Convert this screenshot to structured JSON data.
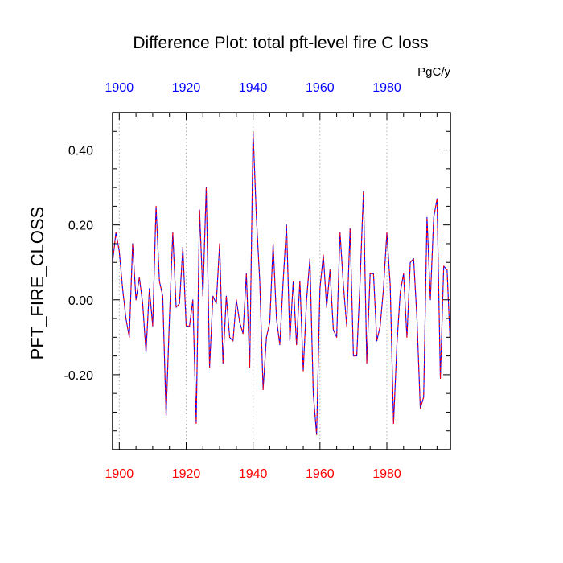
{
  "chart_data": {
    "type": "line",
    "title": "Difference Plot: total pft-level fire C loss",
    "units": "PgC/y",
    "ylabel": "PFT_FIRE_CLOSS",
    "xlim": [
      1898,
      1999
    ],
    "ylim": [
      -0.4,
      0.5
    ],
    "x_ticks": [
      1900,
      1920,
      1940,
      1960,
      1980
    ],
    "x_tick_labels": [
      "1900",
      "1920",
      "1940",
      "1960",
      "1980"
    ],
    "y_ticks": [
      -0.2,
      0.0,
      0.2,
      0.4
    ],
    "y_tick_labels": [
      "-0.20",
      "0.00",
      "0.20",
      "0.40"
    ],
    "grid": "vertical dotted at major x ticks",
    "colors": {
      "series_a": "#0000ff",
      "series_b": "#ff0000",
      "top_axis_labels": "#0000ff",
      "bottom_axis_labels": "#ff0000",
      "grid": "#b0b0b0",
      "axes": "#000000"
    },
    "series": [
      {
        "x": [
          1898,
          1899,
          1900,
          1901,
          1902,
          1903,
          1904,
          1905,
          1906,
          1907,
          1908,
          1909,
          1910,
          1911,
          1912,
          1913,
          1914,
          1915,
          1916,
          1917,
          1918,
          1919,
          1920,
          1921,
          1922,
          1923,
          1924,
          1925,
          1926,
          1927,
          1928,
          1929,
          1930,
          1931,
          1932,
          1933,
          1934,
          1935,
          1936,
          1937,
          1938,
          1939,
          1940,
          1941,
          1942,
          1943,
          1944,
          1945,
          1946,
          1947,
          1948,
          1949,
          1950,
          1951,
          1952,
          1953,
          1954,
          1955,
          1956,
          1957,
          1958,
          1959,
          1960,
          1961,
          1962,
          1963,
          1964,
          1965,
          1966,
          1967,
          1968,
          1969,
          1970,
          1971,
          1972,
          1973,
          1974,
          1975,
          1976,
          1977,
          1978,
          1979,
          1980,
          1981,
          1982,
          1983,
          1984,
          1985,
          1986,
          1987,
          1988,
          1989,
          1990,
          1991,
          1992,
          1993,
          1994,
          1995,
          1996,
          1997,
          1998,
          1999
        ],
        "y": [
          0.1,
          0.18,
          0.13,
          0.03,
          -0.05,
          -0.1,
          0.15,
          0.0,
          0.06,
          -0.01,
          -0.14,
          0.03,
          -0.07,
          0.25,
          0.05,
          0.01,
          -0.31,
          -0.05,
          0.18,
          -0.02,
          -0.01,
          0.14,
          -0.07,
          -0.07,
          0.0,
          -0.33,
          0.24,
          0.01,
          0.3,
          -0.18,
          0.01,
          -0.01,
          0.15,
          -0.17,
          0.01,
          -0.1,
          -0.11,
          0.0,
          -0.06,
          -0.09,
          0.07,
          -0.18,
          0.45,
          0.22,
          0.05,
          -0.24,
          -0.1,
          -0.06,
          0.15,
          -0.05,
          -0.12,
          0.05,
          0.2,
          -0.11,
          0.05,
          -0.12,
          0.05,
          -0.19,
          0.0,
          0.11,
          -0.25,
          -0.36,
          0.03,
          0.12,
          -0.02,
          0.08,
          -0.08,
          -0.1,
          0.18,
          0.04,
          -0.07,
          0.19,
          -0.15,
          -0.15,
          0.05,
          0.29,
          -0.17,
          0.07,
          0.07,
          -0.11,
          -0.07,
          0.03,
          0.18,
          0.04,
          -0.33,
          -0.12,
          0.02,
          0.07,
          -0.1,
          0.1,
          0.11,
          -0.05,
          -0.29,
          -0.26,
          0.22,
          0.0,
          0.22,
          0.27,
          -0.21,
          0.09,
          0.08,
          -0.13
        ]
      }
    ]
  }
}
